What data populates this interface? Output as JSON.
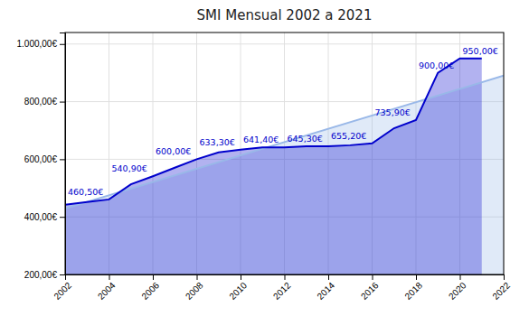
{
  "chart_data": {
    "type": "area",
    "title": "SMI Mensual 2002 a 2021",
    "series": [
      {
        "type": "area",
        "color": "#0000cc",
        "x": [
          2002,
          2003,
          2004,
          2005,
          2006,
          2007,
          2008,
          2009,
          2010,
          2011,
          2012,
          2013,
          2014,
          2015,
          2016,
          2017,
          2018,
          2019,
          2020,
          2021
        ],
        "values": [
          442.2,
          451.2,
          460.5,
          513.0,
          540.9,
          570.6,
          600.0,
          624.0,
          633.3,
          641.4,
          641.4,
          645.3,
          645.3,
          648.6,
          655.2,
          707.7,
          735.9,
          900.0,
          950.0,
          950.0
        ]
      },
      {
        "type": "area",
        "color": "#99b8e8",
        "x": [
          2002,
          2022
        ],
        "values": [
          428.5614,
          890.1689
        ]
      }
    ],
    "annotations": [
      {
        "x": 2002,
        "y": 460.5,
        "text": "460,50€"
      },
      {
        "x": 2004,
        "y": 540.9,
        "text": "540,90€"
      },
      {
        "x": 2006,
        "y": 600.0,
        "text": "600,00€"
      },
      {
        "x": 2008,
        "y": 633.3,
        "text": "633,30€"
      },
      {
        "x": 2010,
        "y": 641.4,
        "text": "641,40€"
      },
      {
        "x": 2012,
        "y": 645.3,
        "text": "645,30€"
      },
      {
        "x": 2014,
        "y": 655.2,
        "text": "655,20€"
      },
      {
        "x": 2016,
        "y": 735.9,
        "text": "735,90€"
      },
      {
        "x": 2018,
        "y": 900.0,
        "text": "900,00€"
      },
      {
        "x": 2020,
        "y": 950.0,
        "text": "950,00€"
      }
    ],
    "xlim": [
      2002,
      2022
    ],
    "ylim": [
      200,
      1040
    ],
    "xticks": [
      2002,
      2004,
      2006,
      2008,
      2010,
      2012,
      2014,
      2016,
      2018,
      2020,
      2022
    ],
    "yticks": [
      {
        "value": 200,
        "label": "200,00€"
      },
      {
        "value": 400,
        "label": "400,00€"
      },
      {
        "value": 600,
        "label": "600,00€"
      },
      {
        "value": 800,
        "label": "800,00€"
      },
      {
        "value": 1000,
        "label": "1.000,00€"
      }
    ],
    "grid": true
  }
}
